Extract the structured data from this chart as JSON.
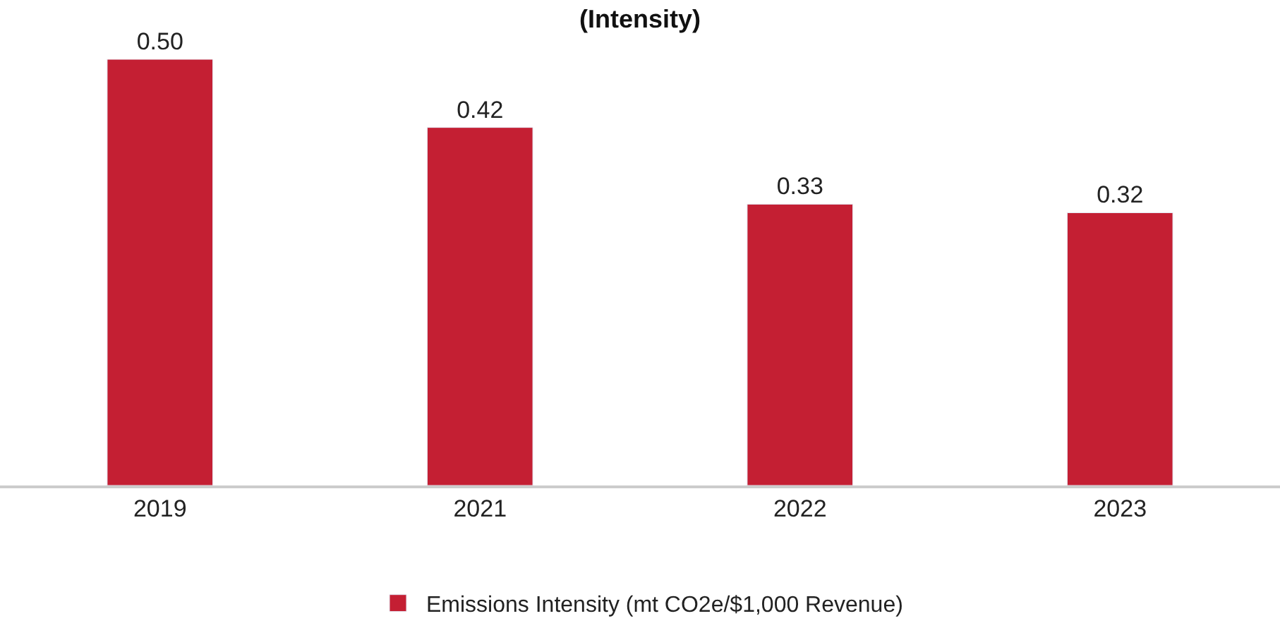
{
  "chart_data": {
    "type": "bar",
    "title": "(Intensity)",
    "categories": [
      "2019",
      "2021",
      "2022",
      "2023"
    ],
    "series": [
      {
        "name": "Emissions Intensity (mt CO2e/$1,000 Revenue)",
        "color": "#c41f33",
        "values": [
          0.5,
          0.42,
          0.33,
          0.32
        ],
        "value_labels": [
          "0.50",
          "0.42",
          "0.33",
          "0.32"
        ]
      }
    ],
    "legend": "bottom"
  }
}
